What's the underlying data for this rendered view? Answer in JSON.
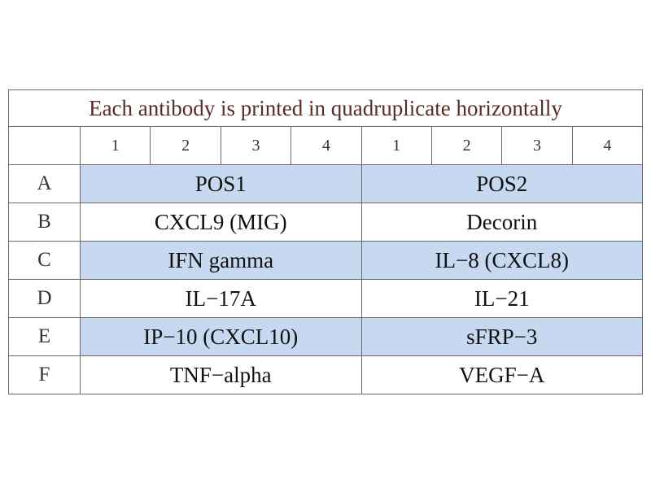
{
  "table": {
    "title": "Each antibody is printed in quadruplicate horizontally",
    "header": [
      "1",
      "2",
      "3",
      "4",
      "1",
      "2",
      "3",
      "4"
    ],
    "rows": [
      {
        "label": "A",
        "cells": [
          "POS1",
          "POS2"
        ]
      },
      {
        "label": "B",
        "cells": [
          "CXCL9 (MIG)",
          "Decorin"
        ]
      },
      {
        "label": "C",
        "cells": [
          "IFN gamma",
          "IL−8 (CXCL8)"
        ]
      },
      {
        "label": "D",
        "cells": [
          "IL−17A",
          "IL−21"
        ]
      },
      {
        "label": "E",
        "cells": [
          "IP−10 (CXCL10)",
          "sFRP−3"
        ]
      },
      {
        "label": "F",
        "cells": [
          "TNF−alpha",
          "VEGF−A"
        ]
      }
    ]
  }
}
